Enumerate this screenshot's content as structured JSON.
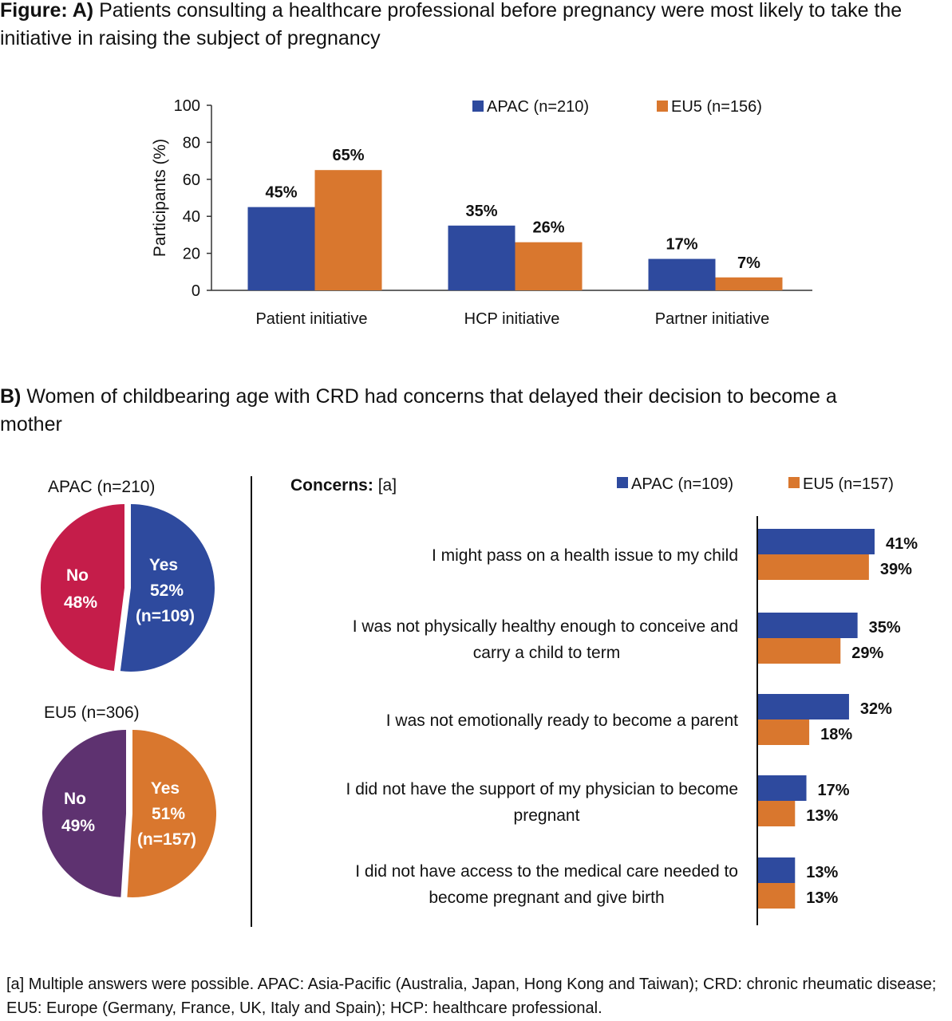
{
  "panel_a": {
    "heading_bold": "Figure: A)",
    "heading_text": "Patients consulting a healthcare professional before pregnancy were most likely to take the initiative in raising the subject of pregnancy"
  },
  "panel_b": {
    "heading_bold": "B)",
    "heading_text": "Women of childbearing age with CRD had concerns that delayed their decision to become a mother",
    "concerns_label_bold": "Concerns:",
    "concerns_label_note": "[a]"
  },
  "footnote": "[a] Multiple answers were possible. APAC: Asia-Pacific (Australia, Japan, Hong Kong and Taiwan); CRD: chronic rheumatic disease; EU5: Europe (Germany, France, UK, Italy and Spain); HCP: healthcare professional.",
  "colors": {
    "apac": "#2E4A9E",
    "eu5": "#D9772E",
    "apac_no": "#C51D4A",
    "eu5_no": "#5E3270"
  },
  "chart_data": [
    {
      "type": "bar",
      "title": "",
      "categories": [
        "Patient initiative",
        "HCP initiative",
        "Partner initiative"
      ],
      "ylabel": "Participants (%)",
      "ylim": [
        0,
        100
      ],
      "yticks": [
        "0",
        "20",
        "40",
        "60",
        "80",
        "100"
      ],
      "series": [
        {
          "name": "APAC (n=210)",
          "values": [
            45,
            35,
            17
          ],
          "labels": [
            "45%",
            "35%",
            "17%"
          ]
        },
        {
          "name": "EU5 (n=156)",
          "values": [
            65,
            26,
            7
          ],
          "labels": [
            "65%",
            "26%",
            "7%"
          ]
        }
      ],
      "legend": "top-right",
      "grid": false
    },
    {
      "type": "pie",
      "title": "APAC (n=210)",
      "slices": [
        {
          "name": "Yes",
          "value": 52,
          "label": "52%",
          "sub": "(n=109)"
        },
        {
          "name": "No",
          "value": 48,
          "label": "48%"
        }
      ]
    },
    {
      "type": "pie",
      "title": "EU5  (n=306)",
      "slices": [
        {
          "name": "Yes",
          "value": 51,
          "label": "51%",
          "sub": "(n=157)"
        },
        {
          "name": "No",
          "value": 49,
          "label": "49%"
        }
      ]
    },
    {
      "type": "bar",
      "orientation": "horizontal",
      "categories": [
        [
          "I might pass on a health issue to my child"
        ],
        [
          "I was not physically healthy enough to conceive and",
          "carry a child to term"
        ],
        [
          "I was not emotionally ready to become a parent"
        ],
        [
          "I did not have the support of my physician to become",
          "pregnant"
        ],
        [
          "I did not have access to the medical care needed to",
          "become pregnant and give birth"
        ]
      ],
      "series": [
        {
          "name": "APAC (n=109)",
          "values": [
            41,
            35,
            32,
            17,
            13
          ],
          "labels": [
            "41%",
            "35%",
            "32%",
            "17%",
            "13%"
          ]
        },
        {
          "name": "EU5 (n=157)",
          "values": [
            39,
            29,
            18,
            13,
            13
          ],
          "labels": [
            "39%",
            "29%",
            "18%",
            "13%",
            "13%"
          ]
        }
      ],
      "legend": "top-right"
    }
  ]
}
